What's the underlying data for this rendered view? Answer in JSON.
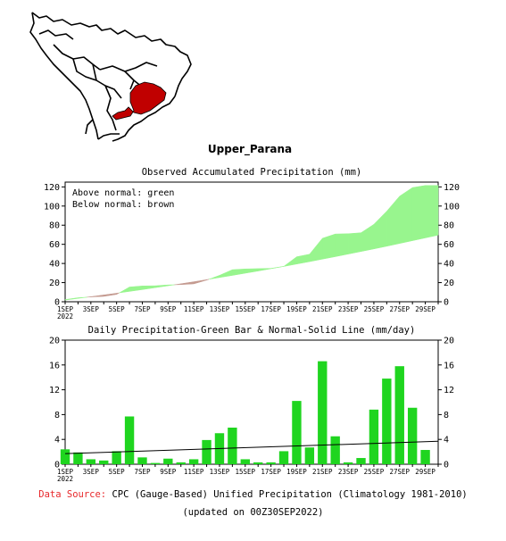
{
  "region_title": "Upper_Parana",
  "footer": {
    "source_label": "Data Source:",
    "source_text": "CPC (Gauge-Based) Unified Precipitation (Climatology 1981-2010)",
    "updated": "(updated on 00Z30SEP2022)"
  },
  "colors": {
    "above": "#98f58e",
    "below": "#c49a90",
    "bar": "#1fd51f",
    "region": "#c00000",
    "normal_line": "#000000"
  },
  "chart_data": [
    {
      "type": "area",
      "title": "Observed Accumulated Precipitation (mm)",
      "legend": [
        "Above normal: green",
        "Below normal: brown"
      ],
      "legend_position": "top-left",
      "ylim": [
        0,
        125
      ],
      "yticks": [
        0,
        20,
        40,
        60,
        80,
        100,
        120
      ],
      "xtick_labels": [
        "1SEP",
        "3SEP",
        "5SEP",
        "7SEP",
        "9SEP",
        "11SEP",
        "13SEP",
        "15SEP",
        "17SEP",
        "19SEP",
        "21SEP",
        "23SEP",
        "25SEP",
        "27SEP",
        "29SEP"
      ],
      "year_label": "2022",
      "days": [
        1,
        2,
        3,
        4,
        5,
        6,
        7,
        8,
        9,
        10,
        11,
        12,
        13,
        14,
        15,
        16,
        17,
        18,
        19,
        20,
        21,
        22,
        23,
        24,
        25,
        26,
        27,
        28,
        29,
        30
      ],
      "observed": [
        2.3,
        4.2,
        5.0,
        5.6,
        7.7,
        15.4,
        16.5,
        16.7,
        17.6,
        17.9,
        18.7,
        22.6,
        27.6,
        33.5,
        34.3,
        34.6,
        34.9,
        37.0,
        47.0,
        49.7,
        66.3,
        70.8,
        71.1,
        72.1,
        80.9,
        94.6,
        110.3,
        119.3,
        121.5,
        121.5
      ],
      "normal": [
        1.7,
        3.5,
        5.3,
        7.1,
        8.9,
        10.8,
        12.7,
        14.7,
        16.7,
        18.8,
        20.9,
        23.1,
        25.3,
        27.5,
        29.8,
        32.1,
        34.5,
        36.9,
        39.4,
        41.9,
        44.5,
        47.1,
        49.8,
        52.5,
        55.2,
        58.0,
        60.9,
        63.8,
        66.7,
        69.6
      ]
    },
    {
      "type": "bar",
      "title": "Daily Precipitation-Green Bar & Normal-Solid Line (mm/day)",
      "ylim": [
        0,
        20
      ],
      "yticks": [
        0,
        4,
        8,
        12,
        16,
        20
      ],
      "xtick_labels": [
        "1SEP",
        "3SEP",
        "5SEP",
        "7SEP",
        "9SEP",
        "11SEP",
        "13SEP",
        "15SEP",
        "17SEP",
        "19SEP",
        "21SEP",
        "23SEP",
        "25SEP",
        "27SEP",
        "29SEP"
      ],
      "year_label": "2022",
      "days": [
        1,
        2,
        3,
        4,
        5,
        6,
        7,
        8,
        9,
        10,
        11,
        12,
        13,
        14,
        15,
        16,
        17,
        18,
        19,
        20,
        21,
        22,
        23,
        24,
        25,
        26,
        27,
        28,
        29,
        30
      ],
      "values": [
        2.4,
        1.9,
        0.8,
        0.6,
        2.1,
        7.7,
        1.1,
        0.2,
        0.9,
        0.3,
        0.8,
        3.9,
        5.0,
        5.9,
        0.8,
        0.3,
        0.3,
        2.1,
        10.2,
        2.7,
        16.6,
        4.5,
        0.3,
        1.0,
        8.8,
        13.8,
        15.8,
        9.1,
        2.3,
        0.0
      ],
      "normal_line": [
        1.7,
        3.7
      ]
    }
  ]
}
